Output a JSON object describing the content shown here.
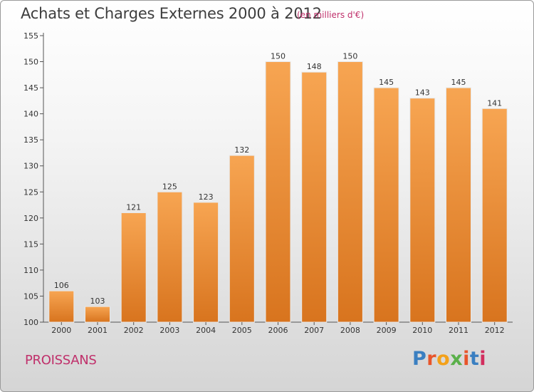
{
  "header": {
    "title": "Achats et Charges Externes 2000 à 2012",
    "unit": "(en milliers d'€)"
  },
  "footer": {
    "commune": "PROISSANS",
    "logo": "Proxiti",
    "logo_colors": [
      "#3a7fc1",
      "#e8552b",
      "#f3a11a",
      "#5ab04a",
      "#e8552b",
      "#3a7fc1",
      "#d22d5e"
    ]
  },
  "colors": {
    "bar_top": "#f7a552",
    "bar_bottom": "#d8741e",
    "title": "#3d3d3d",
    "accent": "#c0306b"
  },
  "chart_data": {
    "type": "bar",
    "categories": [
      "2000",
      "2001",
      "2002",
      "2003",
      "2004",
      "2005",
      "2006",
      "2007",
      "2008",
      "2009",
      "2010",
      "2011",
      "2012"
    ],
    "values": [
      106,
      103,
      121,
      125,
      123,
      132,
      150,
      148,
      150,
      145,
      143,
      145,
      141
    ],
    "data_labels": [
      "106",
      "103",
      "121",
      "125",
      "123",
      "132",
      "150",
      "148",
      "150",
      "145",
      "143",
      "145",
      "141"
    ],
    "y_ticks": [
      100,
      105,
      110,
      115,
      120,
      125,
      130,
      135,
      140,
      145,
      150,
      155
    ],
    "ylim": [
      100,
      155
    ],
    "grid": false,
    "legend": "none"
  }
}
